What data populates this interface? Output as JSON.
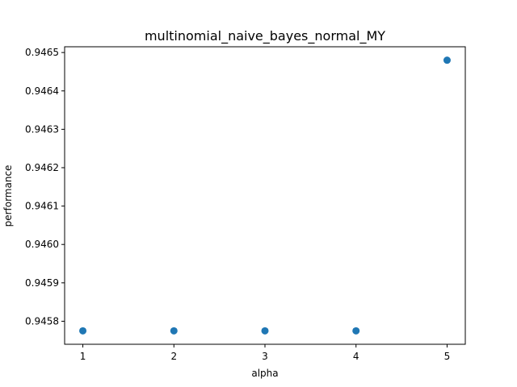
{
  "chart_data": {
    "type": "scatter",
    "title": "multinomial_naive_bayes_normal_MY",
    "xlabel": "alpha",
    "ylabel": "performance",
    "x": [
      1,
      2,
      3,
      4,
      5
    ],
    "y": [
      0.945775,
      0.945775,
      0.945775,
      0.945775,
      0.94648
    ],
    "xlim": [
      0.8,
      5.2
    ],
    "ylim": [
      0.94574,
      0.946515
    ],
    "xticks": [
      1,
      2,
      3,
      4,
      5
    ],
    "xtick_labels": [
      "1",
      "2",
      "3",
      "4",
      "5"
    ],
    "yticks": [
      0.9458,
      0.9459,
      0.946,
      0.9461,
      0.9462,
      0.9463,
      0.9464,
      0.9465
    ],
    "ytick_labels": [
      "0.9458",
      "0.9459",
      "0.9460",
      "0.9461",
      "0.9462",
      "0.9463",
      "0.9464",
      "0.9465"
    ],
    "grid": false,
    "legend": "none",
    "marker_color": "#1f77b4"
  }
}
